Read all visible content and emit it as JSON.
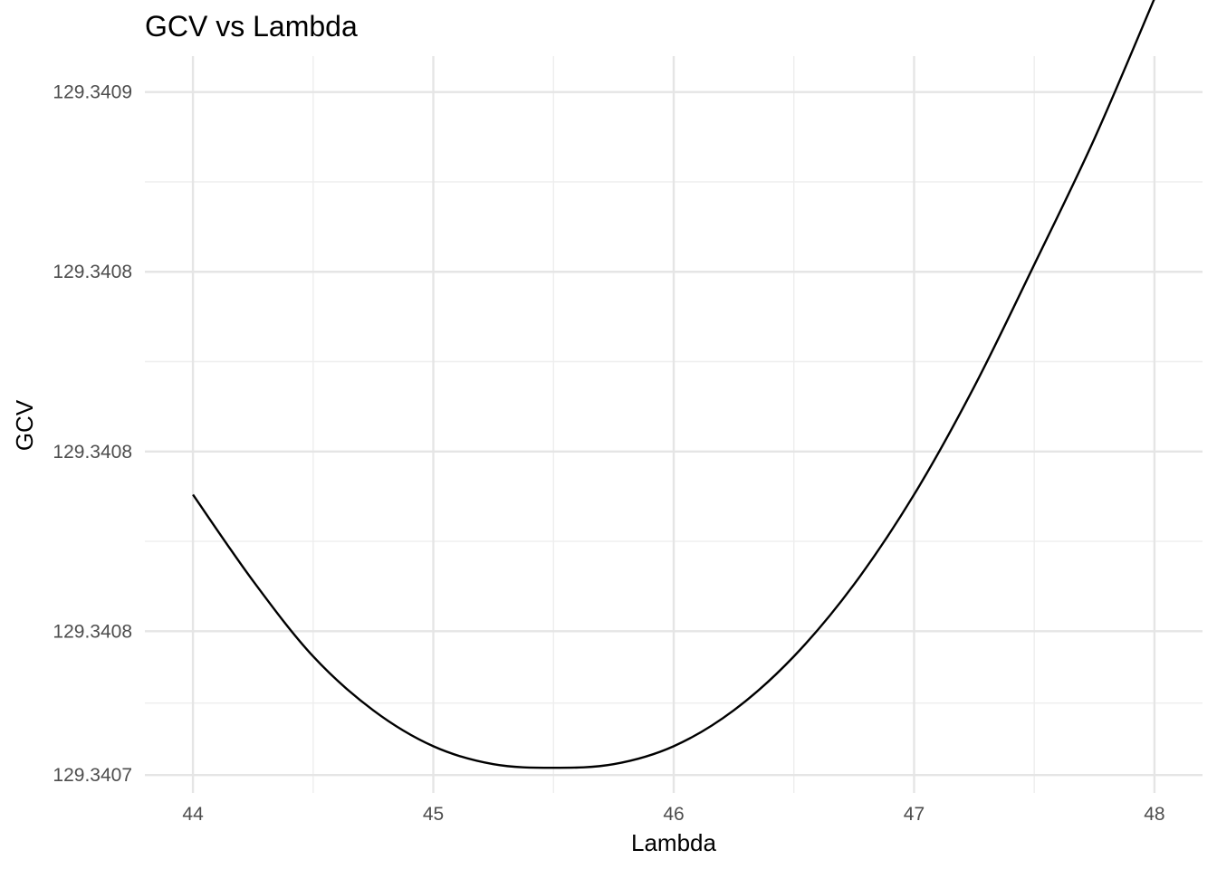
{
  "chart_data": {
    "type": "line",
    "title": "GCV vs Lambda",
    "xlabel": "Lambda",
    "ylabel": "GCV",
    "xlim": [
      43.8,
      48.2
    ],
    "ylim": [
      129.340705,
      129.34091
    ],
    "x_ticks": [
      {
        "value": 44,
        "label": "44"
      },
      {
        "value": 45,
        "label": "45"
      },
      {
        "value": 46,
        "label": "46"
      },
      {
        "value": 47,
        "label": "47"
      },
      {
        "value": 48,
        "label": "48"
      }
    ],
    "x_minor_ticks": [
      44.5,
      45.5,
      46.5,
      47.5
    ],
    "y_ticks": [
      {
        "value": 129.34071,
        "label": "129.3407"
      },
      {
        "value": 129.34075,
        "label": "129.3408"
      },
      {
        "value": 129.3408,
        "label": "129.3408"
      },
      {
        "value": 129.34085,
        "label": "129.3408"
      },
      {
        "value": 129.3409,
        "label": "129.3409"
      }
    ],
    "y_minor_ticks": [
      129.34073,
      129.340775,
      129.340825,
      129.340875
    ],
    "grid": true,
    "legend": "none",
    "series": [
      {
        "color": "#000000",
        "x": [
          44.0,
          44.25,
          44.5,
          44.75,
          45.0,
          45.25,
          45.5,
          45.75,
          46.0,
          46.25,
          46.5,
          46.75,
          47.0,
          47.25,
          47.5,
          47.75,
          48.0
        ],
        "y": [
          129.340788,
          129.340764,
          129.340743,
          129.340728,
          129.340718,
          129.340713,
          129.340712,
          129.340713,
          129.340718,
          129.340728,
          129.340743,
          129.340763,
          129.340788,
          129.340818,
          129.340852,
          129.340887,
          129.340926
        ]
      }
    ]
  }
}
